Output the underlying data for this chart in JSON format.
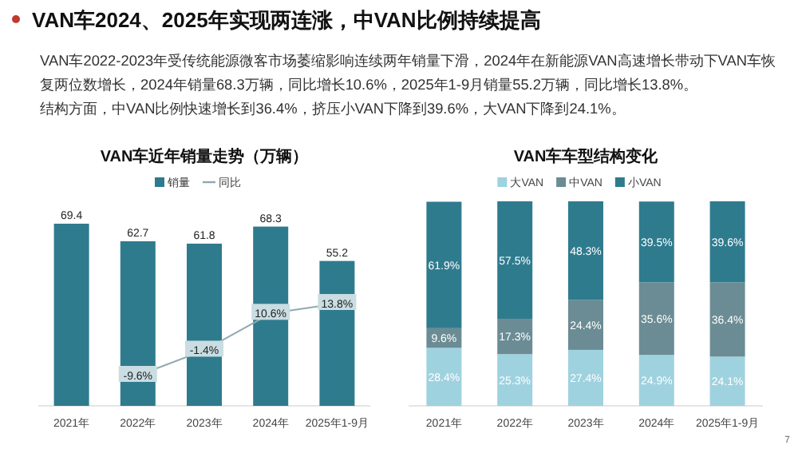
{
  "chart_data": [
    {
      "type": "other",
      "title": "VAN车2024、2025年实现两连涨，中VAN比例持续提高",
      "annotations": [
        "VAN车2022-2023年受传统能源微客市场萎缩影响连续两年销量下滑，2024年在新能源VAN高速增长带动下VAN车恢复两位数增长，2024年销量68.3万辆，同比增长10.6%，2025年1-9月销量55.2万辆，同比增长13.8%。",
        "结构方面，中VAN比例快速增长到36.4%，挤压小VAN下降到39.6%，大VAN下降到24.1%。",
        "7"
      ]
    },
    {
      "type": "bar",
      "title": "VAN车近年销量走势（万辆）",
      "categories": [
        "2021年",
        "2022年",
        "2023年",
        "2024年",
        "2025年1-9月"
      ],
      "legend": "top",
      "data_labels": true,
      "series": [
        {
          "name": "销量",
          "color": "#2f7b8e",
          "values": [
            69.4,
            62.7,
            61.8,
            68.3,
            55.2
          ]
        },
        {
          "name": "同比",
          "type": "line",
          "axis": "y2",
          "color": "#8fa9b0",
          "marker": "square",
          "values": [
            null,
            -9.6,
            -1.4,
            10.6,
            13.8
          ],
          "value_labels": [
            null,
            "-9.6%",
            "-1.4%",
            "10.6%",
            "13.8%"
          ]
        }
      ]
    },
    {
      "type": "bar",
      "title": "VAN车车型结构变化",
      "categories": [
        "2021年",
        "2022年",
        "2023年",
        "2024年",
        "2025年1-9月"
      ],
      "stacked": true,
      "legend": "top",
      "series": [
        {
          "name": "大VAN",
          "color": "#9fd2df",
          "values": [
            28.4,
            25.3,
            27.4,
            24.9,
            24.1
          ],
          "value_labels": [
            "28.4%",
            "25.3%",
            "27.4%",
            "24.9%",
            "24.1%"
          ]
        },
        {
          "name": "中VAN",
          "color": "#6b8c94",
          "values": [
            9.6,
            17.3,
            24.4,
            35.6,
            36.4
          ],
          "value_labels": [
            "9.6%",
            "17.3%",
            "24.4%",
            "35.6%",
            "36.4%"
          ]
        },
        {
          "name": "小VAN",
          "color": "#2f7b8e",
          "values": [
            61.9,
            57.5,
            48.3,
            39.5,
            39.6
          ],
          "value_labels": [
            "61.9%",
            "57.5%",
            "48.3%",
            "39.5%",
            "39.6%"
          ]
        }
      ]
    }
  ]
}
